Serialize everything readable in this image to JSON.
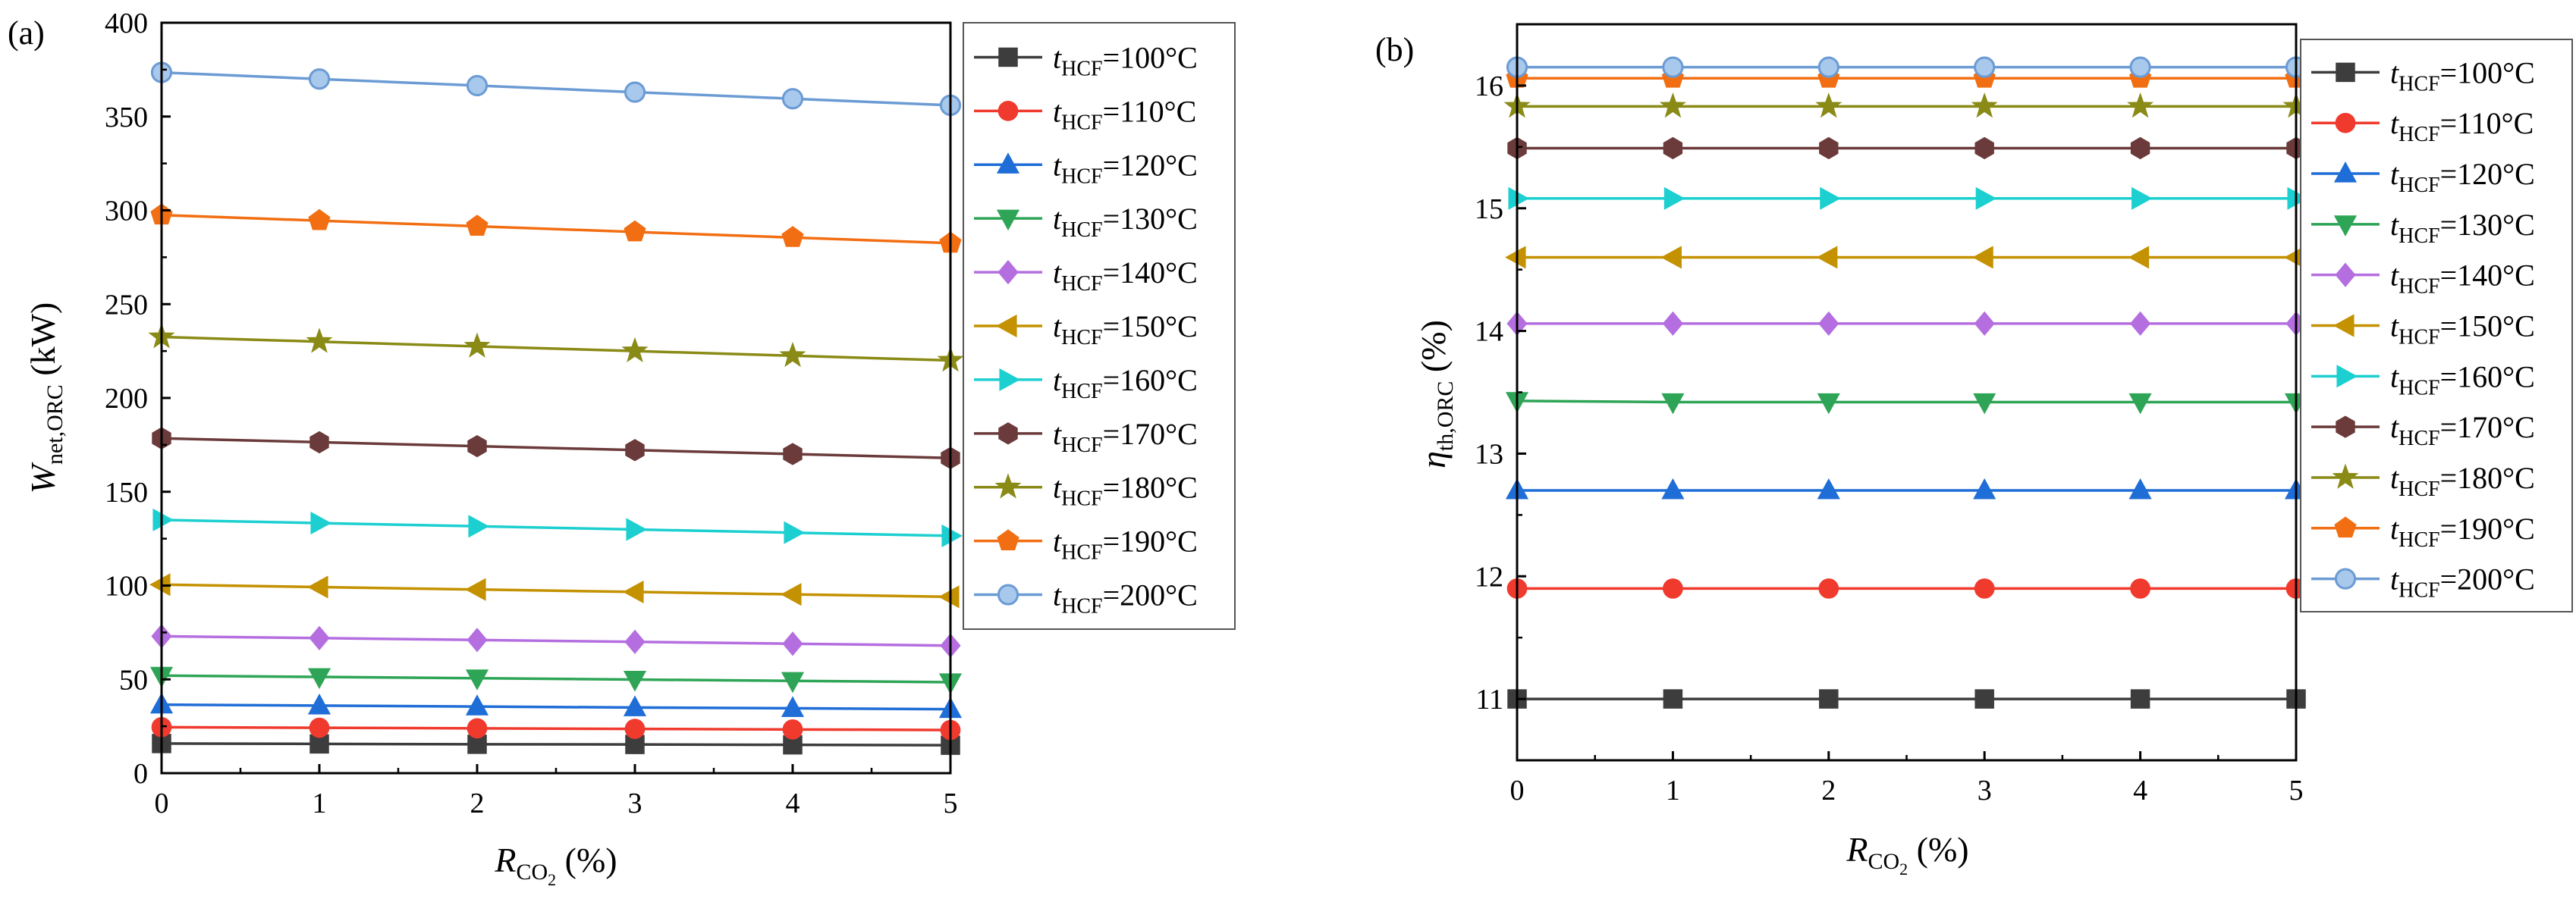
{
  "chart_data": [
    {
      "panel_label": "(a)",
      "type": "line",
      "ylabel": {
        "main": "W",
        "sub": "net,ORC",
        "unit": " (kW)"
      },
      "xlabel": {
        "main": "R",
        "sub": "CO",
        "subsub": "2",
        "unit": " (%)"
      },
      "xlim": [
        0,
        5
      ],
      "ylim": [
        0,
        400
      ],
      "xticks": [
        "0",
        "1",
        "2",
        "3",
        "4",
        "5"
      ],
      "yticks": [
        "0",
        "50",
        "100",
        "150",
        "200",
        "250",
        "300",
        "350",
        "400"
      ],
      "x": [
        0,
        1,
        2,
        3,
        4,
        5
      ],
      "grid": false,
      "legend_position": "right",
      "series": [
        {
          "name": "t_HCF=100°C",
          "legend": {
            "t": "t",
            "sub": "HCF",
            "rest": "=100°C"
          },
          "color": "#3d3d3d",
          "marker": "square",
          "values": [
            15.8,
            15.6,
            15.4,
            15.3,
            15.1,
            14.9
          ]
        },
        {
          "name": "t_HCF=110°C",
          "legend": {
            "t": "t",
            "sub": "HCF",
            "rest": "=110°C"
          },
          "color": "#f03a2e",
          "marker": "circle",
          "values": [
            24.5,
            24.2,
            23.9,
            23.6,
            23.3,
            23.0
          ]
        },
        {
          "name": "t_HCF=120°C",
          "legend": {
            "t": "t",
            "sub": "HCF",
            "rest": "=120°C"
          },
          "color": "#1f6dd6",
          "marker": "triangle-up",
          "values": [
            36.5,
            36.0,
            35.5,
            35.0,
            34.6,
            34.1
          ]
        },
        {
          "name": "t_HCF=130°C",
          "legend": {
            "t": "t",
            "sub": "HCF",
            "rest": "=130°C"
          },
          "color": "#2ea556",
          "marker": "triangle-down",
          "values": [
            52.0,
            51.3,
            50.6,
            49.9,
            49.2,
            48.5
          ]
        },
        {
          "name": "t_HCF=140°C",
          "legend": {
            "t": "t",
            "sub": "HCF",
            "rest": "=140°C"
          },
          "color": "#b46ee0",
          "marker": "diamond",
          "values": [
            73.0,
            72.0,
            71.0,
            70.0,
            69.0,
            68.0
          ]
        },
        {
          "name": "t_HCF=150°C",
          "legend": {
            "t": "t",
            "sub": "HCF",
            "rest": "=150°C"
          },
          "color": "#c49100",
          "marker": "triangle-left",
          "values": [
            100.5,
            99.2,
            97.9,
            96.6,
            95.3,
            94.0
          ]
        },
        {
          "name": "t_HCF=160°C",
          "legend": {
            "t": "t",
            "sub": "HCF",
            "rest": "=160°C"
          },
          "color": "#1ccfd0",
          "marker": "triangle-right",
          "values": [
            135.0,
            133.3,
            131.6,
            129.9,
            128.2,
            126.5
          ]
        },
        {
          "name": "t_HCF=170°C",
          "legend": {
            "t": "t",
            "sub": "HCF",
            "rest": "=170°C"
          },
          "color": "#6b3a3a",
          "marker": "hexagon",
          "values": [
            178.5,
            176.4,
            174.3,
            172.2,
            170.1,
            168.0
          ]
        },
        {
          "name": "t_HCF=180°C",
          "legend": {
            "t": "t",
            "sub": "HCF",
            "rest": "=180°C"
          },
          "color": "#8a8a16",
          "marker": "star",
          "values": [
            232.5,
            230.0,
            227.5,
            225.0,
            222.5,
            220.0
          ]
        },
        {
          "name": "t_HCF=190°C",
          "legend": {
            "t": "t",
            "sub": "HCF",
            "rest": "=190°C"
          },
          "color": "#f26e12",
          "marker": "pentagon",
          "values": [
            297.5,
            294.5,
            291.5,
            288.5,
            285.5,
            282.5
          ]
        },
        {
          "name": "t_HCF=200°C",
          "legend": {
            "t": "t",
            "sub": "HCF",
            "rest": "=200°C"
          },
          "color": "#6b9bd4",
          "marker": "circle-light",
          "values": [
            373.5,
            370.0,
            366.5,
            363.0,
            359.5,
            356.0
          ]
        }
      ]
    },
    {
      "panel_label": "(b)",
      "type": "line",
      "ylabel": {
        "main": "η",
        "sub": "th,ORC",
        "unit": " (%)"
      },
      "xlabel": {
        "main": "R",
        "sub": "CO",
        "subsub": "2",
        "unit": " (%)"
      },
      "xlim": [
        0,
        5
      ],
      "ylim": [
        10.5,
        16.5
      ],
      "xticks": [
        "0",
        "1",
        "2",
        "3",
        "4",
        "5"
      ],
      "yticks": [
        "11",
        "12",
        "13",
        "14",
        "15",
        "16"
      ],
      "x": [
        0,
        1,
        2,
        3,
        4,
        5
      ],
      "grid": false,
      "legend_position": "right",
      "series": [
        {
          "name": "t_HCF=100°C",
          "legend": {
            "t": "t",
            "sub": "HCF",
            "rest": "=100°C"
          },
          "color": "#3d3d3d",
          "marker": "square",
          "values": [
            11.0,
            11.0,
            11.0,
            11.0,
            11.0,
            11.0
          ]
        },
        {
          "name": "t_HCF=110°C",
          "legend": {
            "t": "t",
            "sub": "HCF",
            "rest": "=110°C"
          },
          "color": "#f03a2e",
          "marker": "circle",
          "values": [
            11.9,
            11.9,
            11.9,
            11.9,
            11.9,
            11.9
          ]
        },
        {
          "name": "t_HCF=120°C",
          "legend": {
            "t": "t",
            "sub": "HCF",
            "rest": "=120°C"
          },
          "color": "#1f6dd6",
          "marker": "triangle-up",
          "values": [
            12.7,
            12.7,
            12.7,
            12.7,
            12.7,
            12.7
          ]
        },
        {
          "name": "t_HCF=130°C",
          "legend": {
            "t": "t",
            "sub": "HCF",
            "rest": "=130°C"
          },
          "color": "#2ea556",
          "marker": "triangle-down",
          "values": [
            13.43,
            13.42,
            13.42,
            13.42,
            13.42,
            13.42
          ]
        },
        {
          "name": "t_HCF=140°C",
          "legend": {
            "t": "t",
            "sub": "HCF",
            "rest": "=140°C"
          },
          "color": "#b46ee0",
          "marker": "diamond",
          "values": [
            14.06,
            14.06,
            14.06,
            14.06,
            14.06,
            14.06
          ]
        },
        {
          "name": "t_HCF=150°C",
          "legend": {
            "t": "t",
            "sub": "HCF",
            "rest": "=150°C"
          },
          "color": "#c49100",
          "marker": "triangle-left",
          "values": [
            14.6,
            14.6,
            14.6,
            14.6,
            14.6,
            14.6
          ]
        },
        {
          "name": "t_HCF=160°C",
          "legend": {
            "t": "t",
            "sub": "HCF",
            "rest": "=160°C"
          },
          "color": "#1ccfd0",
          "marker": "triangle-right",
          "values": [
            15.08,
            15.08,
            15.08,
            15.08,
            15.08,
            15.08
          ]
        },
        {
          "name": "t_HCF=170°C",
          "legend": {
            "t": "t",
            "sub": "HCF",
            "rest": "=170°C"
          },
          "color": "#6b3a3a",
          "marker": "hexagon",
          "values": [
            15.49,
            15.49,
            15.49,
            15.49,
            15.49,
            15.49
          ]
        },
        {
          "name": "t_HCF=180°C",
          "legend": {
            "t": "t",
            "sub": "HCF",
            "rest": "=180°C"
          },
          "color": "#8a8a16",
          "marker": "star",
          "values": [
            15.83,
            15.83,
            15.83,
            15.83,
            15.83,
            15.83
          ]
        },
        {
          "name": "t_HCF=190°C",
          "legend": {
            "t": "t",
            "sub": "HCF",
            "rest": "=190°C"
          },
          "color": "#f26e12",
          "marker": "pentagon",
          "values": [
            16.06,
            16.06,
            16.06,
            16.06,
            16.06,
            16.06
          ]
        },
        {
          "name": "t_HCF=200°C",
          "legend": {
            "t": "t",
            "sub": "HCF",
            "rest": "=200°C"
          },
          "color": "#6b9bd4",
          "marker": "circle-light",
          "values": [
            16.15,
            16.15,
            16.15,
            16.15,
            16.15,
            16.15
          ]
        }
      ]
    }
  ]
}
